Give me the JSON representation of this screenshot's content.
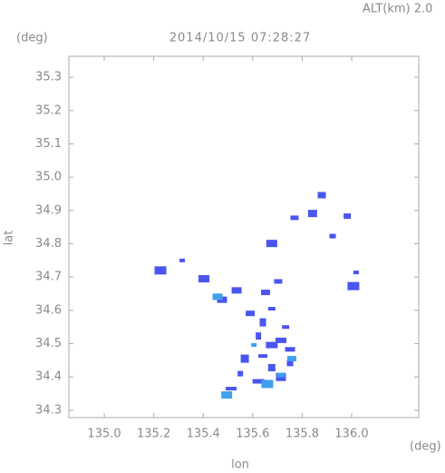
{
  "chart_data": {
    "type": "scatter",
    "title": "2014/10/15 07:28:27",
    "subtitle": "ALT(km) 2.0",
    "xlabel": "lon",
    "ylabel": "lat",
    "xunit": "(deg)",
    "yunit": "(deg)",
    "xlim": [
      134.857,
      136.271
    ],
    "ylim": [
      34.278,
      35.363
    ],
    "xticks": [
      {
        "value": 135,
        "label": "135.0"
      },
      135.2,
      135.4,
      135.6,
      135.8,
      {
        "value": 136,
        "label": "136.0"
      }
    ],
    "yticks": [
      34.3,
      34.4,
      34.5,
      34.6,
      34.7,
      34.8,
      34.9,
      {
        "value": 35,
        "label": "35.0"
      },
      35.1,
      35.2,
      35.3
    ],
    "grid": false,
    "series": [
      {
        "color": "#4a55ee",
        "x": [
          135.315,
          135.227,
          135.403,
          135.535,
          135.652,
          135.703,
          135.677,
          135.641,
          135.623,
          135.677,
          135.714,
          135.751,
          135.641,
          135.568,
          135.677,
          135.751,
          135.55,
          135.623,
          135.513,
          135.714,
          135.842,
          135.879,
          135.982,
          135.923,
          136.018,
          136.007,
          135.677,
          135.476,
          135.59,
          135.769,
          135.733
        ],
        "values": [
          34.75,
          34.72,
          34.695,
          34.66,
          34.654,
          34.687,
          34.605,
          34.564,
          34.523,
          34.496,
          34.51,
          34.483,
          34.463,
          34.455,
          34.428,
          34.442,
          34.41,
          34.387,
          34.365,
          34.4,
          34.891,
          34.946,
          34.883,
          34.823,
          34.714,
          34.673,
          34.801,
          34.632,
          34.591,
          34.878,
          34.55
        ]
      },
      {
        "color": "#3fa0ee",
        "x": [
          135.605,
          135.659,
          135.495,
          135.458,
          135.758,
          135.714
        ],
        "values": [
          34.496,
          34.379,
          34.346,
          34.641,
          34.455,
          34.406
        ]
      }
    ]
  }
}
